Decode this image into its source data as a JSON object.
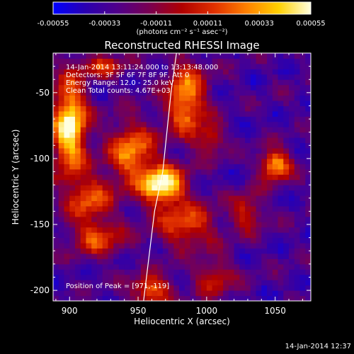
{
  "colorbar": {
    "tick_labels": [
      "-0.00055",
      "-0.00033",
      "-0.00011",
      "0.00011",
      "0.00033",
      "0.00055"
    ],
    "tick_values": [
      -0.00055,
      -0.00033,
      -0.00011,
      0.00011,
      0.00033,
      0.00055
    ],
    "range": [
      -0.00055,
      0.00055
    ],
    "unit_label": "(photons cm⁻² s⁻¹ asec⁻²)",
    "colors": [
      "#0000ff",
      "#2a00b0",
      "#50008a",
      "#7a0050",
      "#b00000",
      "#e03000",
      "#ff8000",
      "#ffd000",
      "#ffffe0"
    ]
  },
  "chart_data": {
    "type": "heatmap",
    "title": "Reconstructed RHESSI Image",
    "xlabel": "Heliocentric X (arcsec)",
    "ylabel": "Heliocentric Y (arcsec)",
    "xlim": [
      888,
      1076
    ],
    "ylim": [
      -208,
      -20
    ],
    "x_ticks": [
      900,
      950,
      1000,
      1050
    ],
    "y_ticks": [
      -50,
      -100,
      -150,
      -200
    ],
    "x_tick_labels": [
      "900",
      "950",
      "1000",
      "1050"
    ],
    "y_tick_labels": [
      "-50",
      "-100",
      "-150",
      "-200"
    ],
    "info_lines": [
      "14-Jan-2014 13:11:24.000 to 13:13:48.000",
      "Detectors: 3F 5F 6F 7F 8F 9F, Att 0",
      "Energy Range: 12.0 - 25.0 keV",
      "Clean     Total counts: 4.67E+03"
    ],
    "peak_label": "Position of Peak = [971,-119]",
    "peak": [
      971,
      -119
    ],
    "limb_line": [
      [
        954,
        -208
      ],
      [
        962,
        -140
      ],
      [
        968,
        -110
      ],
      [
        974,
        -50
      ],
      [
        978,
        -20
      ]
    ],
    "sources": [
      {
        "x": 900,
        "y": -75,
        "sx": 9,
        "sy": 25,
        "amp": 1.0
      },
      {
        "x": 915,
        "y": -130,
        "sx": 12,
        "sy": 12,
        "amp": 0.55
      },
      {
        "x": 920,
        "y": -160,
        "sx": 14,
        "sy": 10,
        "amp": 0.5
      },
      {
        "x": 945,
        "y": -95,
        "sx": 12,
        "sy": 16,
        "amp": 0.7
      },
      {
        "x": 968,
        "y": -120,
        "sx": 11,
        "sy": 10,
        "amp": 1.05
      },
      {
        "x": 985,
        "y": -55,
        "sx": 10,
        "sy": 20,
        "amp": 0.75
      },
      {
        "x": 985,
        "y": -150,
        "sx": 16,
        "sy": 12,
        "amp": 0.55
      },
      {
        "x": 1003,
        "y": -85,
        "sx": 7,
        "sy": 8,
        "amp": 0.45
      },
      {
        "x": 1050,
        "y": -105,
        "sx": 8,
        "sy": 8,
        "amp": 0.8
      },
      {
        "x": 1030,
        "y": -140,
        "sx": 8,
        "sy": 10,
        "amp": 0.45
      },
      {
        "x": 1005,
        "y": -190,
        "sx": 10,
        "sy": 10,
        "amp": 0.45
      },
      {
        "x": 960,
        "y": -200,
        "sx": 10,
        "sy": 8,
        "amp": 0.65
      },
      {
        "x": 925,
        "y": -30,
        "sx": 12,
        "sy": 6,
        "amp": 0.45
      }
    ]
  },
  "footer": {
    "timestamp": "14-Jan-2014 12:37"
  }
}
